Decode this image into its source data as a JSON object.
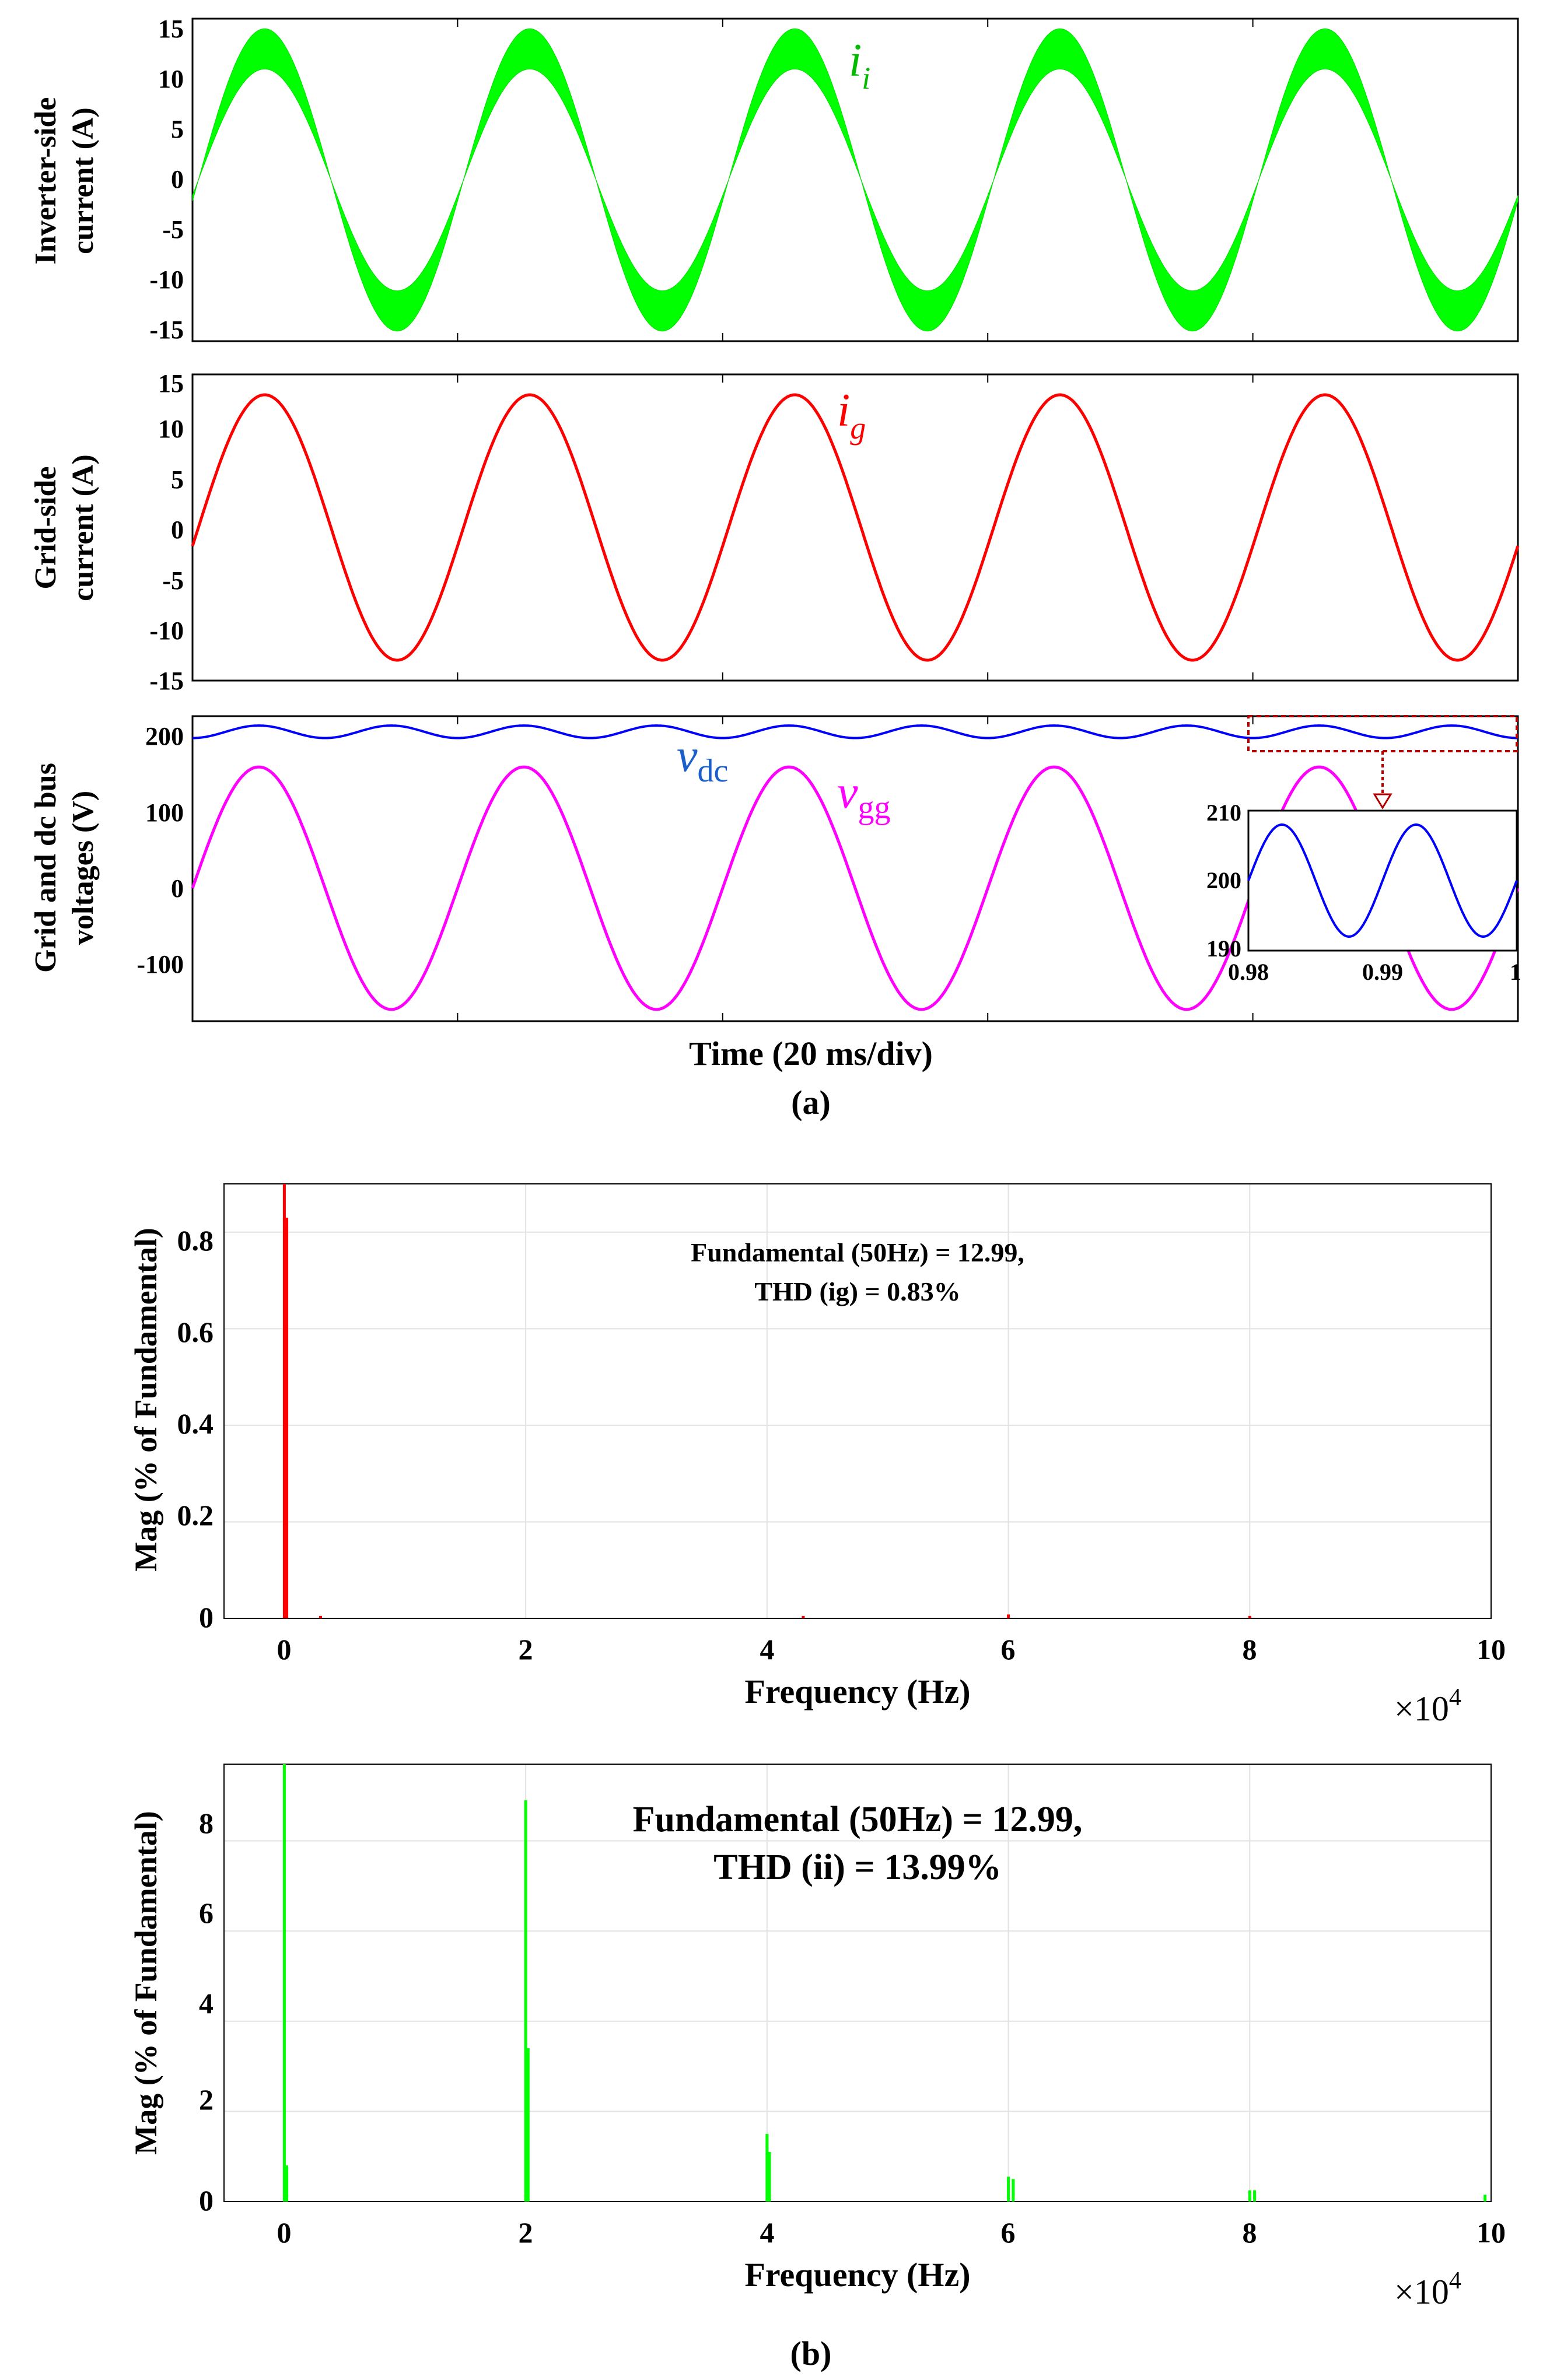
{
  "panel_a": {
    "caption": "(a)",
    "xlabel": "Time (20 ms/div)",
    "plots": [
      {
        "ylabel_lines": [
          "Inverter-side",
          "current (A)"
        ],
        "yticks": [
          "15",
          "10",
          "5",
          "0",
          "-5",
          "-10",
          "-15"
        ],
        "label_main": "i",
        "label_sub": "i",
        "color": "#00ff00"
      },
      {
        "ylabel_lines": [
          "Grid-side",
          "current (A)"
        ],
        "yticks": [
          "15",
          "10",
          "5",
          "0",
          "-5",
          "-10",
          "-15"
        ],
        "label_main": "i",
        "label_sub": "g",
        "color": "#ff0000"
      },
      {
        "ylabel_lines": [
          "Grid and  dc bus",
          "voltages (V)"
        ],
        "yticks": [
          "200",
          "100",
          "0",
          "-100"
        ],
        "vdc_main": "v",
        "vdc_sub": "dc",
        "vgg_main": "v",
        "vgg_sub": "gg",
        "vdc_color": "#0000ff",
        "vgg_color": "#ff00ff"
      }
    ],
    "inset": {
      "yticks": [
        "210",
        "200",
        "190"
      ],
      "xticks": [
        "0.98",
        "0.99",
        "1"
      ]
    }
  },
  "panel_b": {
    "caption": "(b)",
    "plots": [
      {
        "ylabel": "Mag (% of Fundamental)",
        "xlabel": "Frequency (Hz)",
        "xticks": [
          "0",
          "2",
          "4",
          "6",
          "8",
          "10"
        ],
        "yticks": [
          "0.8",
          "0.6",
          "0.4",
          "0.2",
          "0"
        ],
        "x_multiplier_base": "×10",
        "x_multiplier_exp": "4",
        "annotation_lines": [
          "Fundamental (50Hz) = 12.99,",
          "THD (ig) = 0.83%"
        ],
        "color": "#ff0000"
      },
      {
        "ylabel": "Mag (% of Fundamental)",
        "xlabel": "Frequency (Hz)",
        "xticks": [
          "0",
          "2",
          "4",
          "6",
          "8",
          "10"
        ],
        "yticks": [
          "8",
          "6",
          "4",
          "2",
          "0"
        ],
        "x_multiplier_base": "×10",
        "x_multiplier_exp": "4",
        "annotation_lines": [
          "Fundamental (50Hz) = 12.99,",
          "THD (ii) = 13.99%"
        ],
        "color": "#00ff00"
      }
    ]
  },
  "chart_data": [
    {
      "type": "line",
      "series": [
        {
          "name": "i_i",
          "frequency_hz": 50,
          "amplitude_envelope": [
            11,
            15
          ],
          "phase_at_start_deg": -8
        }
      ],
      "ylim": [
        -16,
        16
      ],
      "time_span_ms": 100
    },
    {
      "type": "line",
      "series": [
        {
          "name": "i_g",
          "frequency_hz": 50,
          "amplitude": 13,
          "phase_at_start_deg": -8
        }
      ],
      "ylim": [
        -15,
        15
      ],
      "time_span_ms": 100
    },
    {
      "type": "line",
      "series": [
        {
          "name": "v_dc",
          "mean": 200,
          "ripple_amplitude": 8,
          "ripple_frequency_hz": 100
        },
        {
          "name": "v_gg",
          "frequency_hz": 50,
          "amplitude": 155,
          "phase_at_start_deg": 0
        }
      ],
      "ylim": [
        -170,
        220
      ],
      "time_span_ms": 100,
      "inset": {
        "xlim": [
          0.98,
          1.0
        ],
        "ylim": [
          190,
          210
        ],
        "mean": 200,
        "ripple_amplitude": 8
      }
    },
    {
      "type": "bar",
      "xlim": [
        -0.5,
        10
      ],
      "ylim": [
        0,
        0.9
      ],
      "x": [
        0,
        0.02,
        0.3,
        4.3,
        6,
        8
      ],
      "values": [
        0.9,
        0.83,
        0.005,
        0.005,
        0.008,
        0.005
      ]
    },
    {
      "type": "bar",
      "xlim": [
        -0.5,
        10
      ],
      "ylim": [
        0,
        9.7
      ],
      "x": [
        0,
        0.02,
        2.0,
        2.02,
        4.0,
        4.02,
        6.0,
        6.04,
        8.0,
        8.04,
        9.95
      ],
      "values": [
        9.7,
        0.8,
        8.9,
        3.4,
        1.5,
        1.1,
        0.55,
        0.5,
        0.25,
        0.25,
        0.15
      ]
    }
  ]
}
